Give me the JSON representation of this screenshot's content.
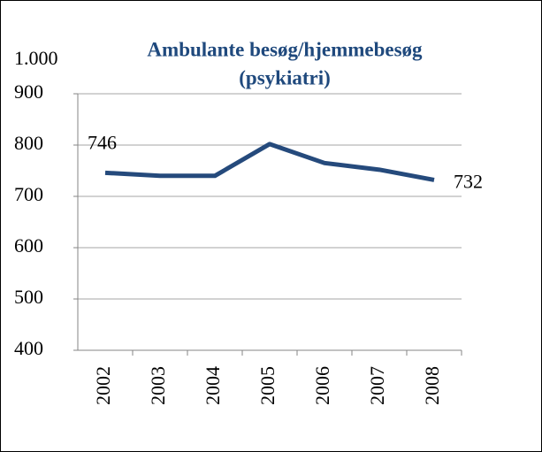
{
  "chart_data": {
    "type": "line",
    "title": [
      "Ambulante besøg/hjemmebesøg",
      "(psykiatri)"
    ],
    "categories": [
      "2002",
      "2003",
      "2004",
      "2005",
      "2006",
      "2007",
      "2008"
    ],
    "series": [
      {
        "name": null,
        "color": "#254a7c",
        "values": [
          746,
          740,
          740,
          802,
          765,
          752,
          732
        ],
        "value_labels": [
          "746",
          null,
          null,
          null,
          null,
          null,
          "732"
        ]
      }
    ],
    "ylim": [
      400,
      1000
    ],
    "yticks": [
      400,
      500,
      600,
      700,
      800,
      900,
      {
        "value": 1000,
        "label": "1.000"
      }
    ],
    "grid": true
  }
}
